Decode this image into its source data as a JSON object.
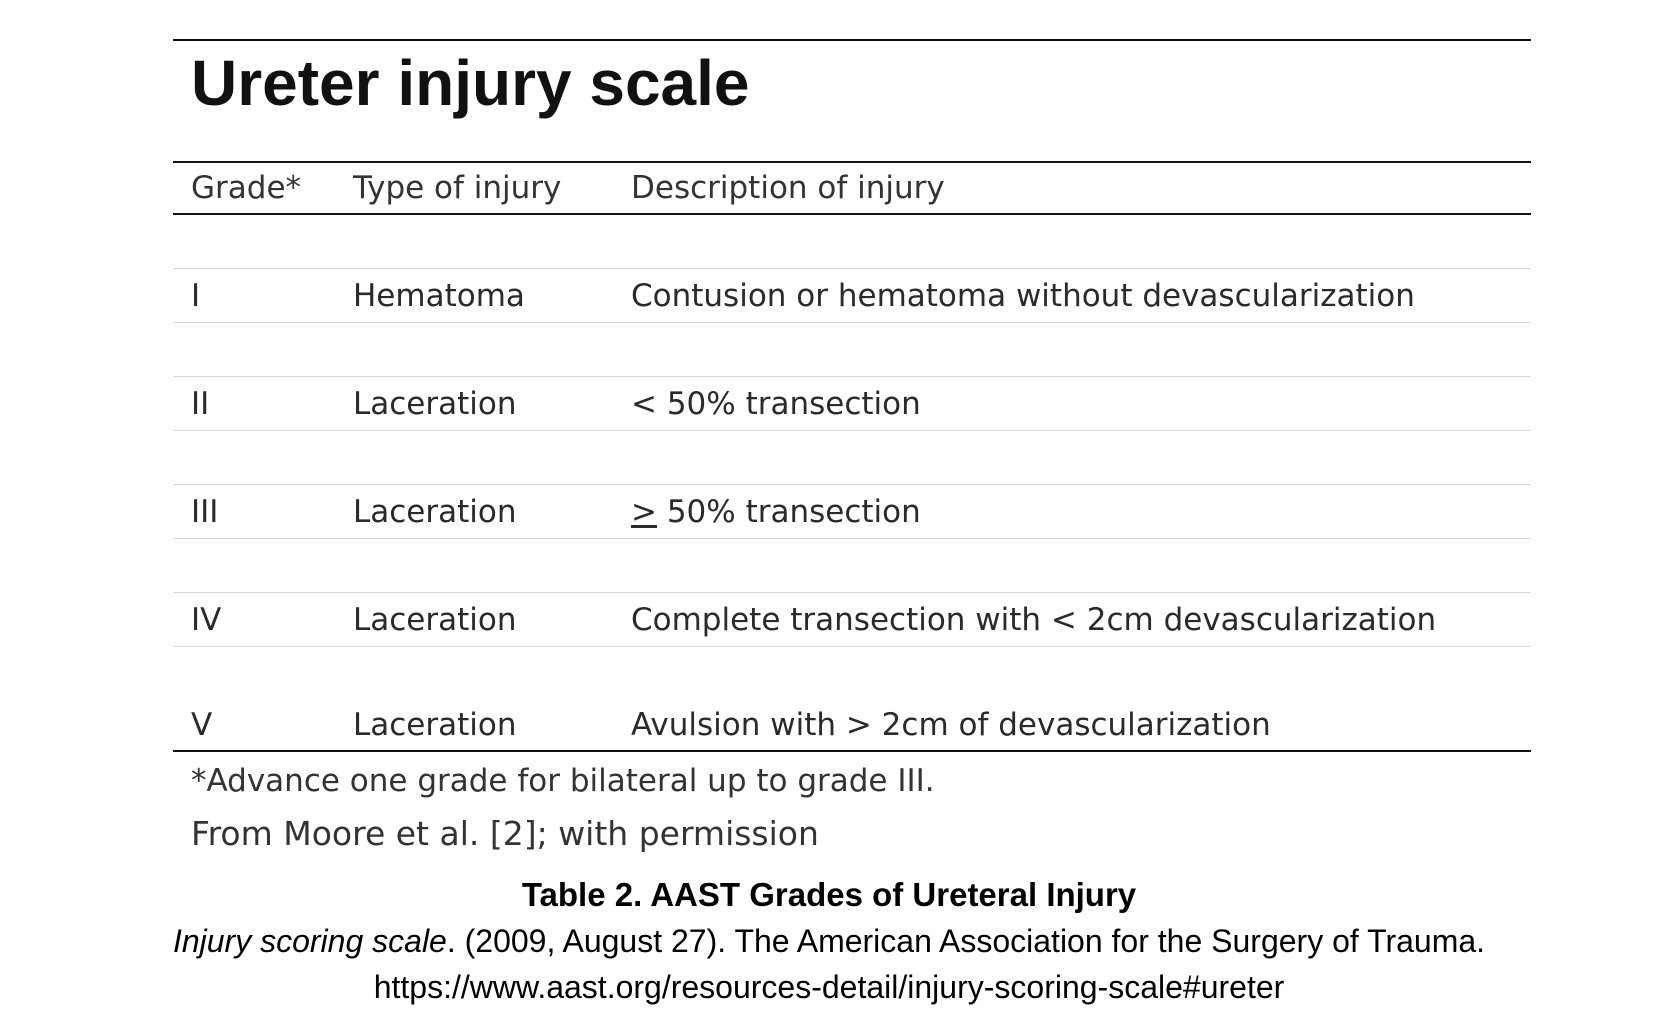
{
  "title": "Ureter injury scale",
  "columns": [
    "Grade*",
    "Type of injury",
    "Description of injury"
  ],
  "rows": [
    {
      "grade": "I",
      "type": "Hematoma",
      "description": "Contusion or hematoma without devascularization"
    },
    {
      "grade": "II",
      "type": "Laceration",
      "description": "< 50% transection"
    },
    {
      "grade": "III",
      "type": "Laceration",
      "description_symbol": ">",
      "description": " 50% transection"
    },
    {
      "grade": "IV",
      "type": "Laceration",
      "description": "Complete transection with < 2cm devascularization"
    },
    {
      "grade": "V",
      "type": "Laceration",
      "description": "Avulsion with > 2cm of devascularization"
    }
  ],
  "footnotes": {
    "note": "*Advance one grade for bilateral up to grade III.",
    "source": "From Moore et al. [2]; with permission"
  },
  "caption": {
    "title": "Table 2. AAST Grades of Ureteral Injury",
    "citation_italic": "Injury scoring scale",
    "citation_rest": ". (2009, August 27). The American Association for the Surgery of Trauma.",
    "url": "https://www.aast.org/resources-detail/injury-scoring-scale#ureter"
  }
}
